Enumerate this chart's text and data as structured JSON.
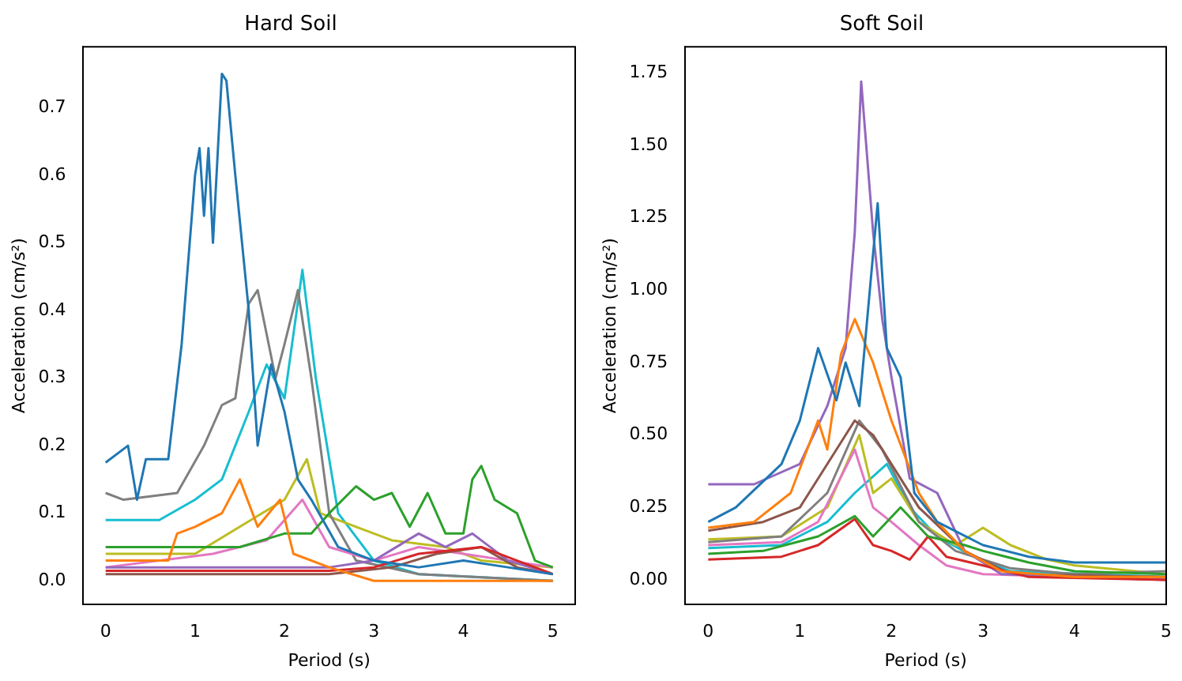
{
  "chart_data": [
    {
      "type": "line",
      "title": "Hard Soil",
      "xlabel": "Period (s)",
      "ylabel": "Acceleration (cm/s²)",
      "xlim": [
        -0.25,
        5.25
      ],
      "ylim": [
        -0.035,
        0.79
      ],
      "xticks": [
        0,
        1,
        2,
        3,
        4,
        5
      ],
      "yticks": [
        {
          "value": 0,
          "label": "0.0"
        },
        {
          "value": 0.1,
          "label": "0.1"
        },
        {
          "value": 0.2,
          "label": "0.2"
        },
        {
          "value": 0.3,
          "label": "0.3"
        },
        {
          "value": 0.4,
          "label": "0.4"
        },
        {
          "value": 0.5,
          "label": "0.5"
        },
        {
          "value": 0.6,
          "label": "0.6"
        },
        {
          "value": 0.7,
          "label": "0.7"
        }
      ],
      "grid": false,
      "legend": false,
      "line_style": "solid",
      "marker": "none",
      "series": [
        {
          "color": "#1f77b4",
          "x": [
            0,
            0.25,
            0.35,
            0.45,
            0.7,
            0.85,
            1.0,
            1.05,
            1.1,
            1.15,
            1.2,
            1.3,
            1.35,
            1.45,
            1.6,
            1.7,
            1.85,
            2.0,
            2.15,
            2.3,
            2.6,
            3.0,
            3.5,
            4.0,
            4.5,
            5.0
          ],
          "values": [
            0.175,
            0.2,
            0.12,
            0.18,
            0.18,
            0.35,
            0.6,
            0.64,
            0.54,
            0.64,
            0.5,
            0.75,
            0.74,
            0.6,
            0.4,
            0.2,
            0.32,
            0.25,
            0.15,
            0.12,
            0.05,
            0.03,
            0.02,
            0.03,
            0.02,
            0.01
          ]
        },
        {
          "color": "#ff7f0e",
          "x": [
            0,
            0.7,
            0.8,
            1.0,
            1.3,
            1.5,
            1.7,
            1.95,
            2.1,
            2.5,
            3.0,
            5.0
          ],
          "values": [
            0.03,
            0.03,
            0.07,
            0.08,
            0.1,
            0.15,
            0.08,
            0.12,
            0.04,
            0.02,
            0,
            0
          ]
        },
        {
          "color": "#2ca02c",
          "x": [
            0,
            1.5,
            2.0,
            2.3,
            2.5,
            2.8,
            3.0,
            3.2,
            3.4,
            3.6,
            3.8,
            4.0,
            4.1,
            4.2,
            4.35,
            4.6,
            4.8,
            5.0
          ],
          "values": [
            0.05,
            0.05,
            0.07,
            0.07,
            0.1,
            0.14,
            0.12,
            0.13,
            0.08,
            0.13,
            0.07,
            0.07,
            0.15,
            0.17,
            0.12,
            0.1,
            0.03,
            0.02
          ]
        },
        {
          "color": "#d62728",
          "x": [
            0,
            2.5,
            3.0,
            3.5,
            4.2,
            4.6,
            5.0
          ],
          "values": [
            0.015,
            0.015,
            0.02,
            0.04,
            0.05,
            0.03,
            0.01
          ]
        },
        {
          "color": "#9467bd",
          "x": [
            0,
            2.5,
            3.0,
            3.5,
            3.8,
            4.1,
            4.5,
            5.0
          ],
          "values": [
            0.02,
            0.02,
            0.03,
            0.07,
            0.05,
            0.07,
            0.03,
            0.01
          ]
        },
        {
          "color": "#8c564b",
          "x": [
            0,
            2.5,
            3.2,
            3.7,
            4.2,
            4.6,
            5.0
          ],
          "values": [
            0.01,
            0.01,
            0.02,
            0.04,
            0.05,
            0.02,
            0.01
          ]
        },
        {
          "color": "#e377c2",
          "x": [
            0,
            1.2,
            1.8,
            2.2,
            2.5,
            3.0,
            3.5,
            4.0,
            5.0
          ],
          "values": [
            0.02,
            0.04,
            0.06,
            0.12,
            0.05,
            0.03,
            0.05,
            0.04,
            0.02
          ]
        },
        {
          "color": "#7f7f7f",
          "x": [
            0,
            0.2,
            0.8,
            1.1,
            1.3,
            1.45,
            1.6,
            1.7,
            1.9,
            2.0,
            2.15,
            2.3,
            2.5,
            2.8,
            3.5,
            5.0
          ],
          "values": [
            0.13,
            0.12,
            0.13,
            0.2,
            0.26,
            0.27,
            0.41,
            0.43,
            0.3,
            0.35,
            0.43,
            0.3,
            0.1,
            0.03,
            0.01,
            0
          ]
        },
        {
          "color": "#bcbd22",
          "x": [
            0,
            1.0,
            1.5,
            2.0,
            2.25,
            2.4,
            2.8,
            3.2,
            3.8,
            4.2,
            5.0
          ],
          "values": [
            0.04,
            0.04,
            0.08,
            0.12,
            0.18,
            0.1,
            0.08,
            0.06,
            0.05,
            0.03,
            0.02
          ]
        },
        {
          "color": "#17becf",
          "x": [
            0,
            0.6,
            1.0,
            1.3,
            1.6,
            1.8,
            2.0,
            2.2,
            2.35,
            2.6,
            3.0,
            3.5,
            5.0
          ],
          "values": [
            0.09,
            0.09,
            0.12,
            0.15,
            0.25,
            0.32,
            0.27,
            0.46,
            0.3,
            0.1,
            0.03,
            0.01,
            0
          ]
        }
      ]
    },
    {
      "type": "line",
      "title": "Soft Soil",
      "xlabel": "Period (s)",
      "ylabel": "Acceleration (cm/s²)",
      "xlim": [
        -0.25,
        5.0
      ],
      "ylim": [
        -0.085,
        1.84
      ],
      "xticks": [
        0,
        1,
        2,
        3,
        4,
        5
      ],
      "yticks": [
        {
          "value": 0,
          "label": "0.00"
        },
        {
          "value": 0.25,
          "label": "0.25"
        },
        {
          "value": 0.5,
          "label": "0.50"
        },
        {
          "value": 0.75,
          "label": "0.75"
        },
        {
          "value": 1,
          "label": "1.00"
        },
        {
          "value": 1.25,
          "label": "1.25"
        },
        {
          "value": 1.5,
          "label": "1.50"
        },
        {
          "value": 1.75,
          "label": "1.75"
        }
      ],
      "grid": false,
      "legend": false,
      "line_style": "solid",
      "marker": "none",
      "series": [
        {
          "color": "#1f77b4",
          "x": [
            0,
            0.3,
            0.8,
            1.0,
            1.2,
            1.4,
            1.5,
            1.65,
            1.75,
            1.85,
            1.95,
            2.1,
            2.25,
            2.5,
            3.0,
            3.5,
            4.0,
            5.0
          ],
          "values": [
            0.2,
            0.25,
            0.4,
            0.55,
            0.8,
            0.62,
            0.75,
            0.6,
            0.95,
            1.3,
            0.8,
            0.7,
            0.3,
            0.2,
            0.12,
            0.08,
            0.06,
            0.06
          ]
        },
        {
          "color": "#ff7f0e",
          "x": [
            0,
            0.5,
            0.9,
            1.2,
            1.3,
            1.45,
            1.6,
            1.8,
            2.0,
            2.3,
            2.5,
            2.8,
            3.2,
            4.0,
            5.0
          ],
          "values": [
            0.18,
            0.2,
            0.3,
            0.55,
            0.45,
            0.78,
            0.9,
            0.75,
            0.55,
            0.3,
            0.2,
            0.1,
            0.03,
            0.01,
            0.01
          ]
        },
        {
          "color": "#2ca02c",
          "x": [
            0,
            0.6,
            1.2,
            1.6,
            1.8,
            2.1,
            2.4,
            2.8,
            3.0,
            3.5,
            4.0,
            5.0
          ],
          "values": [
            0.09,
            0.1,
            0.15,
            0.22,
            0.15,
            0.25,
            0.15,
            0.12,
            0.1,
            0.06,
            0.03,
            0.02
          ]
        },
        {
          "color": "#d62728",
          "x": [
            0,
            0.8,
            1.2,
            1.6,
            1.8,
            2.0,
            2.2,
            2.4,
            2.6,
            3.0,
            3.5,
            5.0
          ],
          "values": [
            0.07,
            0.08,
            0.12,
            0.21,
            0.12,
            0.1,
            0.07,
            0.15,
            0.08,
            0.05,
            0.01,
            0
          ]
        },
        {
          "color": "#9467bd",
          "x": [
            0,
            0.5,
            1.0,
            1.3,
            1.5,
            1.6,
            1.67,
            1.8,
            1.9,
            2.0,
            2.2,
            2.5,
            2.8,
            3.2,
            5.0
          ],
          "values": [
            0.33,
            0.33,
            0.4,
            0.6,
            0.8,
            1.2,
            1.72,
            1.2,
            0.9,
            0.7,
            0.35,
            0.3,
            0.1,
            0.02,
            0
          ]
        },
        {
          "color": "#8c564b",
          "x": [
            0,
            0.6,
            1.0,
            1.4,
            1.6,
            1.8,
            2.0,
            2.3,
            2.8,
            3.3,
            5.0
          ],
          "values": [
            0.17,
            0.2,
            0.25,
            0.45,
            0.55,
            0.5,
            0.4,
            0.25,
            0.1,
            0.02,
            0.01
          ]
        },
        {
          "color": "#e377c2",
          "x": [
            0,
            0.8,
            1.2,
            1.6,
            1.8,
            2.0,
            2.3,
            2.6,
            3.0,
            5.0
          ],
          "values": [
            0.12,
            0.13,
            0.2,
            0.45,
            0.25,
            0.2,
            0.12,
            0.05,
            0.02,
            0
          ]
        },
        {
          "color": "#7f7f7f",
          "x": [
            0,
            0.8,
            1.3,
            1.65,
            1.9,
            2.3,
            2.7,
            3.3,
            4.0,
            5.0
          ],
          "values": [
            0.13,
            0.15,
            0.3,
            0.55,
            0.45,
            0.2,
            0.1,
            0.04,
            0.02,
            0.03
          ]
        },
        {
          "color": "#bcbd22",
          "x": [
            0,
            0.8,
            1.3,
            1.65,
            1.8,
            2.0,
            2.3,
            2.7,
            3.0,
            3.3,
            3.7,
            4.0,
            5.0
          ],
          "values": [
            0.14,
            0.15,
            0.25,
            0.5,
            0.3,
            0.35,
            0.2,
            0.12,
            0.18,
            0.12,
            0.07,
            0.05,
            0.02
          ]
        },
        {
          "color": "#17becf",
          "x": [
            0,
            0.8,
            1.3,
            1.6,
            1.95,
            2.2,
            2.5,
            2.9,
            3.3,
            5.0
          ],
          "values": [
            0.11,
            0.12,
            0.2,
            0.3,
            0.4,
            0.25,
            0.15,
            0.08,
            0.03,
            0.01
          ]
        }
      ]
    }
  ]
}
